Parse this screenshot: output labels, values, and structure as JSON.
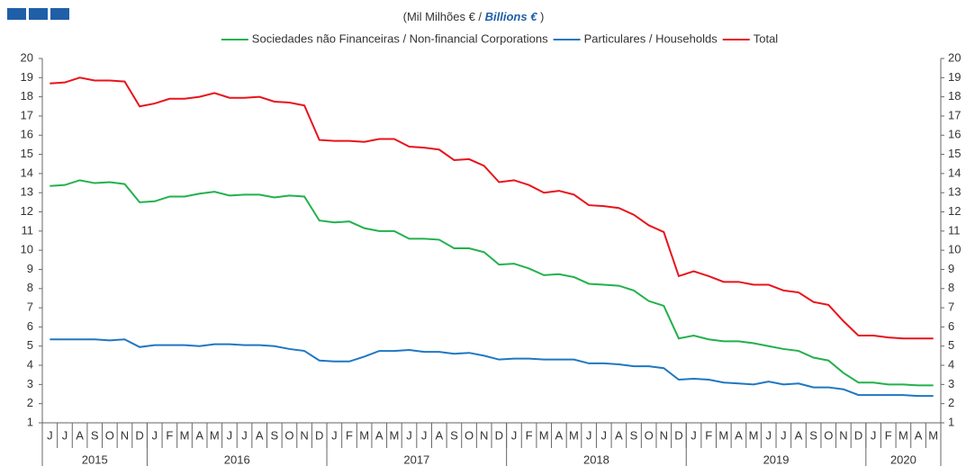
{
  "chart_data": {
    "type": "line",
    "subtitle": [
      "(Mil Milhões € / ",
      "Billions  €",
      " )"
    ],
    "categories": [
      "J",
      "J",
      "A",
      "S",
      "O",
      "N",
      "D",
      "J",
      "F",
      "M",
      "A",
      "M",
      "J",
      "J",
      "A",
      "S",
      "O",
      "N",
      "D",
      "J",
      "F",
      "M",
      "A",
      "M",
      "J",
      "J",
      "A",
      "S",
      "O",
      "N",
      "D",
      "J",
      "F",
      "M",
      "A",
      "M",
      "J",
      "J",
      "A",
      "S",
      "O",
      "N",
      "D",
      "J",
      "F",
      "M",
      "A",
      "M",
      "J",
      "J",
      "A",
      "S",
      "O",
      "N",
      "D",
      "J",
      "F",
      "M",
      "A",
      "M"
    ],
    "years": [
      "2015",
      "2016",
      "2017",
      "2018",
      "2019",
      "2020"
    ],
    "series": [
      {
        "name": "Sociedades não Financeiras / Non-financial Corporations",
        "color": "#22b14c",
        "values": [
          13.35,
          13.4,
          13.65,
          13.5,
          13.55,
          13.45,
          12.5,
          12.55,
          12.8,
          12.8,
          12.95,
          13.05,
          12.85,
          12.9,
          12.9,
          12.75,
          12.85,
          12.8,
          11.55,
          11.45,
          11.5,
          11.15,
          11.0,
          11.0,
          10.6,
          10.6,
          10.55,
          10.1,
          10.1,
          9.9,
          9.25,
          9.3,
          9.05,
          8.7,
          8.75,
          8.6,
          8.25,
          8.2,
          8.15,
          7.9,
          7.35,
          7.1,
          5.4,
          5.55,
          5.35,
          5.25,
          5.25,
          5.15,
          5.0,
          4.85,
          4.75,
          4.4,
          4.25,
          3.6,
          3.1,
          3.1,
          3.0,
          3.0,
          2.95,
          2.95
        ]
      },
      {
        "name": "Particulares / Households",
        "color": "#1f77c4",
        "values": [
          5.35,
          5.35,
          5.35,
          5.35,
          5.3,
          5.35,
          4.95,
          5.05,
          5.05,
          5.05,
          5.0,
          5.1,
          5.1,
          5.05,
          5.05,
          5.0,
          4.85,
          4.75,
          4.25,
          4.2,
          4.2,
          4.45,
          4.75,
          4.75,
          4.8,
          4.7,
          4.7,
          4.6,
          4.65,
          4.5,
          4.3,
          4.35,
          4.35,
          4.3,
          4.3,
          4.3,
          4.1,
          4.1,
          4.05,
          3.95,
          3.95,
          3.85,
          3.25,
          3.3,
          3.25,
          3.1,
          3.05,
          3.0,
          3.15,
          3.0,
          3.05,
          2.85,
          2.85,
          2.75,
          2.45,
          2.45,
          2.45,
          2.45,
          2.4,
          2.4
        ]
      },
      {
        "name": "Total",
        "color": "#e8141b",
        "values": [
          18.7,
          18.75,
          19.0,
          18.85,
          18.85,
          18.8,
          17.5,
          17.65,
          17.9,
          17.9,
          18.0,
          18.2,
          17.95,
          17.95,
          18.0,
          17.75,
          17.7,
          17.55,
          15.75,
          15.7,
          15.7,
          15.65,
          15.8,
          15.8,
          15.4,
          15.35,
          15.25,
          14.7,
          14.75,
          14.4,
          13.55,
          13.65,
          13.4,
          13.0,
          13.1,
          12.9,
          12.35,
          12.3,
          12.2,
          11.85,
          11.3,
          10.95,
          8.65,
          8.9,
          8.65,
          8.35,
          8.35,
          8.2,
          8.2,
          7.9,
          7.8,
          7.3,
          7.15,
          6.3,
          5.55,
          5.55,
          5.45,
          5.4,
          5.4,
          5.4
        ]
      }
    ],
    "ylim": [
      1,
      20
    ],
    "yticks": [
      1,
      2,
      3,
      4,
      5,
      6,
      7,
      8,
      9,
      10,
      11,
      12,
      13,
      14,
      15,
      16,
      17,
      18,
      19,
      20
    ],
    "y2lim": [
      1,
      20
    ],
    "y2ticks": [
      1,
      2,
      3,
      4,
      5,
      6,
      7,
      8,
      9,
      10,
      11,
      12,
      13,
      14,
      15,
      16,
      17,
      18,
      19,
      20
    ],
    "grid": false
  }
}
